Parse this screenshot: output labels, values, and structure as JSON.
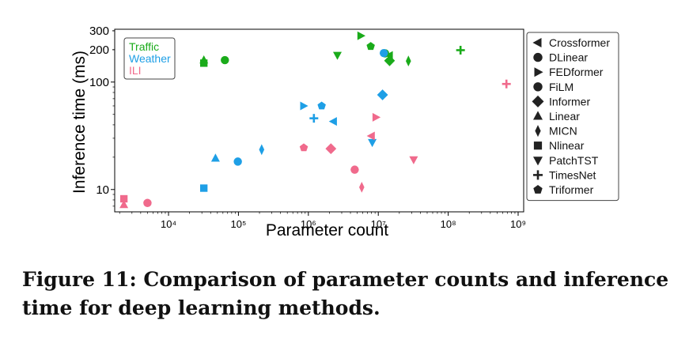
{
  "figure": {
    "caption": "Figure 11: Comparison of parameter counts and inference time for deep learning methods."
  },
  "colors": {
    "Traffic": "#1aab1a",
    "Weather": "#1e9fe6",
    "ILI": "#f06a8c"
  },
  "chart_data": {
    "type": "scatter",
    "title": "",
    "xlabel": "Parameter count",
    "ylabel": "Inference time (ms)",
    "xscale": "log",
    "yscale": "log",
    "xlim": [
      1700,
      1200000000
    ],
    "ylim": [
      6.2,
      310
    ],
    "x_ticks": [
      10000,
      100000,
      1000000,
      10000000,
      100000000,
      1000000000
    ],
    "x_tick_labels": [
      "10⁴",
      "10⁵",
      "10⁶",
      "10⁷",
      "10⁸",
      "10⁹"
    ],
    "y_ticks": [
      10,
      100,
      200,
      300
    ],
    "y_tick_labels": [
      "10",
      "100",
      "200",
      "300"
    ],
    "grid": false,
    "dataset_legend": {
      "placement": "top-left",
      "entries": [
        "Traffic",
        "Weather",
        "ILI"
      ]
    },
    "marker_legend": {
      "placement": "outside-right",
      "entries": [
        {
          "method": "Crossformer",
          "marker": "triangle-left"
        },
        {
          "method": "DLinear",
          "marker": "circle"
        },
        {
          "method": "FEDformer",
          "marker": "triangle-right"
        },
        {
          "method": "FiLM",
          "marker": "circle"
        },
        {
          "method": "Informer",
          "marker": "diamond"
        },
        {
          "method": "Linear",
          "marker": "triangle-up"
        },
        {
          "method": "MICN",
          "marker": "thin-diamond"
        },
        {
          "method": "Nlinear",
          "marker": "square"
        },
        {
          "method": "PatchTST",
          "marker": "triangle-down"
        },
        {
          "method": "TimesNet",
          "marker": "plus"
        },
        {
          "method": "Triformer",
          "marker": "pentagon"
        }
      ]
    },
    "points": [
      {
        "dataset": "Traffic",
        "method": "Nlinear",
        "x": 32000,
        "y": 150
      },
      {
        "dataset": "Traffic",
        "method": "Linear",
        "x": 32000,
        "y": 160
      },
      {
        "dataset": "Traffic",
        "method": "DLinear",
        "x": 64000,
        "y": 160
      },
      {
        "dataset": "Traffic",
        "method": "PatchTST",
        "x": 2600000,
        "y": 178
      },
      {
        "dataset": "Traffic",
        "method": "FEDformer",
        "x": 5600000,
        "y": 270
      },
      {
        "dataset": "Traffic",
        "method": "Triformer",
        "x": 7800000,
        "y": 215
      },
      {
        "dataset": "Traffic",
        "method": "FiLM",
        "x": 12500000,
        "y": 185
      },
      {
        "dataset": "Traffic",
        "method": "Crossformer",
        "x": 14500000,
        "y": 177
      },
      {
        "dataset": "Traffic",
        "method": "Informer",
        "x": 14500000,
        "y": 158
      },
      {
        "dataset": "Traffic",
        "method": "MICN",
        "x": 27000000,
        "y": 157
      },
      {
        "dataset": "Traffic",
        "method": "TimesNet",
        "x": 150000000,
        "y": 198
      },
      {
        "dataset": "Weather",
        "method": "Nlinear",
        "x": 32000,
        "y": 10.3
      },
      {
        "dataset": "Weather",
        "method": "Linear",
        "x": 47000,
        "y": 19.5
      },
      {
        "dataset": "Weather",
        "method": "DLinear",
        "x": 98000,
        "y": 18.2
      },
      {
        "dataset": "Weather",
        "method": "MICN",
        "x": 215000,
        "y": 23.5
      },
      {
        "dataset": "Weather",
        "method": "FEDformer",
        "x": 850000,
        "y": 60
      },
      {
        "dataset": "Weather",
        "method": "TimesNet",
        "x": 1200000,
        "y": 46
      },
      {
        "dataset": "Weather",
        "method": "Triformer",
        "x": 1550000,
        "y": 60
      },
      {
        "dataset": "Weather",
        "method": "Crossformer",
        "x": 2300000,
        "y": 43
      },
      {
        "dataset": "Weather",
        "method": "PatchTST",
        "x": 8200000,
        "y": 27.5
      },
      {
        "dataset": "Weather",
        "method": "Informer",
        "x": 11500000,
        "y": 76
      },
      {
        "dataset": "Weather",
        "method": "FiLM",
        "x": 12000000,
        "y": 186
      },
      {
        "dataset": "ILI",
        "method": "Nlinear",
        "x": 2300,
        "y": 8.2
      },
      {
        "dataset": "ILI",
        "method": "Linear",
        "x": 2300,
        "y": 7.2
      },
      {
        "dataset": "ILI",
        "method": "DLinear",
        "x": 5000,
        "y": 7.5
      },
      {
        "dataset": "ILI",
        "method": "Triformer",
        "x": 860000,
        "y": 24.5
      },
      {
        "dataset": "ILI",
        "method": "Informer",
        "x": 2100000,
        "y": 24
      },
      {
        "dataset": "ILI",
        "method": "FiLM",
        "x": 4600000,
        "y": 15.3
      },
      {
        "dataset": "ILI",
        "method": "MICN",
        "x": 5800000,
        "y": 10.5
      },
      {
        "dataset": "ILI",
        "method": "Crossformer",
        "x": 8000000,
        "y": 31.5
      },
      {
        "dataset": "ILI",
        "method": "FEDformer",
        "x": 9200000,
        "y": 47
      },
      {
        "dataset": "ILI",
        "method": "PatchTST",
        "x": 32000000,
        "y": 19
      },
      {
        "dataset": "ILI",
        "method": "TimesNet",
        "x": 680000000,
        "y": 96
      }
    ]
  }
}
